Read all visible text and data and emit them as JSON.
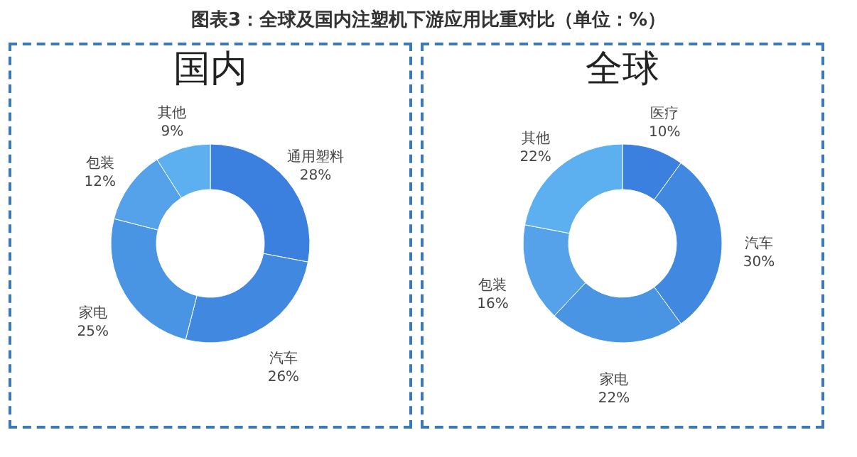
{
  "chart_data": [
    {
      "type": "donut",
      "title": "图表3：全球及国内注塑机下游应用比重对比（单位：%）",
      "subtitle": "国内",
      "categories": [
        "通用塑料",
        "汽车",
        "家电",
        "包装",
        "其他"
      ],
      "values": [
        28,
        26,
        25,
        12,
        9
      ],
      "value_labels": [
        "28%",
        "26%",
        "25%",
        "12%",
        "9%"
      ],
      "colors": [
        "#3b80de",
        "#4189e0",
        "#4a94e4",
        "#55a2ea",
        "#5db0f0"
      ]
    },
    {
      "type": "donut",
      "title": "全球",
      "categories": [
        "医疗",
        "汽车",
        "家电",
        "包装",
        "其他"
      ],
      "values": [
        10,
        30,
        22,
        16,
        22
      ],
      "value_labels": [
        "10%",
        "30%",
        "22%",
        "16%",
        "22%"
      ],
      "colors": [
        "#3b80de",
        "#4189e0",
        "#4a94e4",
        "#55a2ea",
        "#5db0f0"
      ]
    }
  ]
}
